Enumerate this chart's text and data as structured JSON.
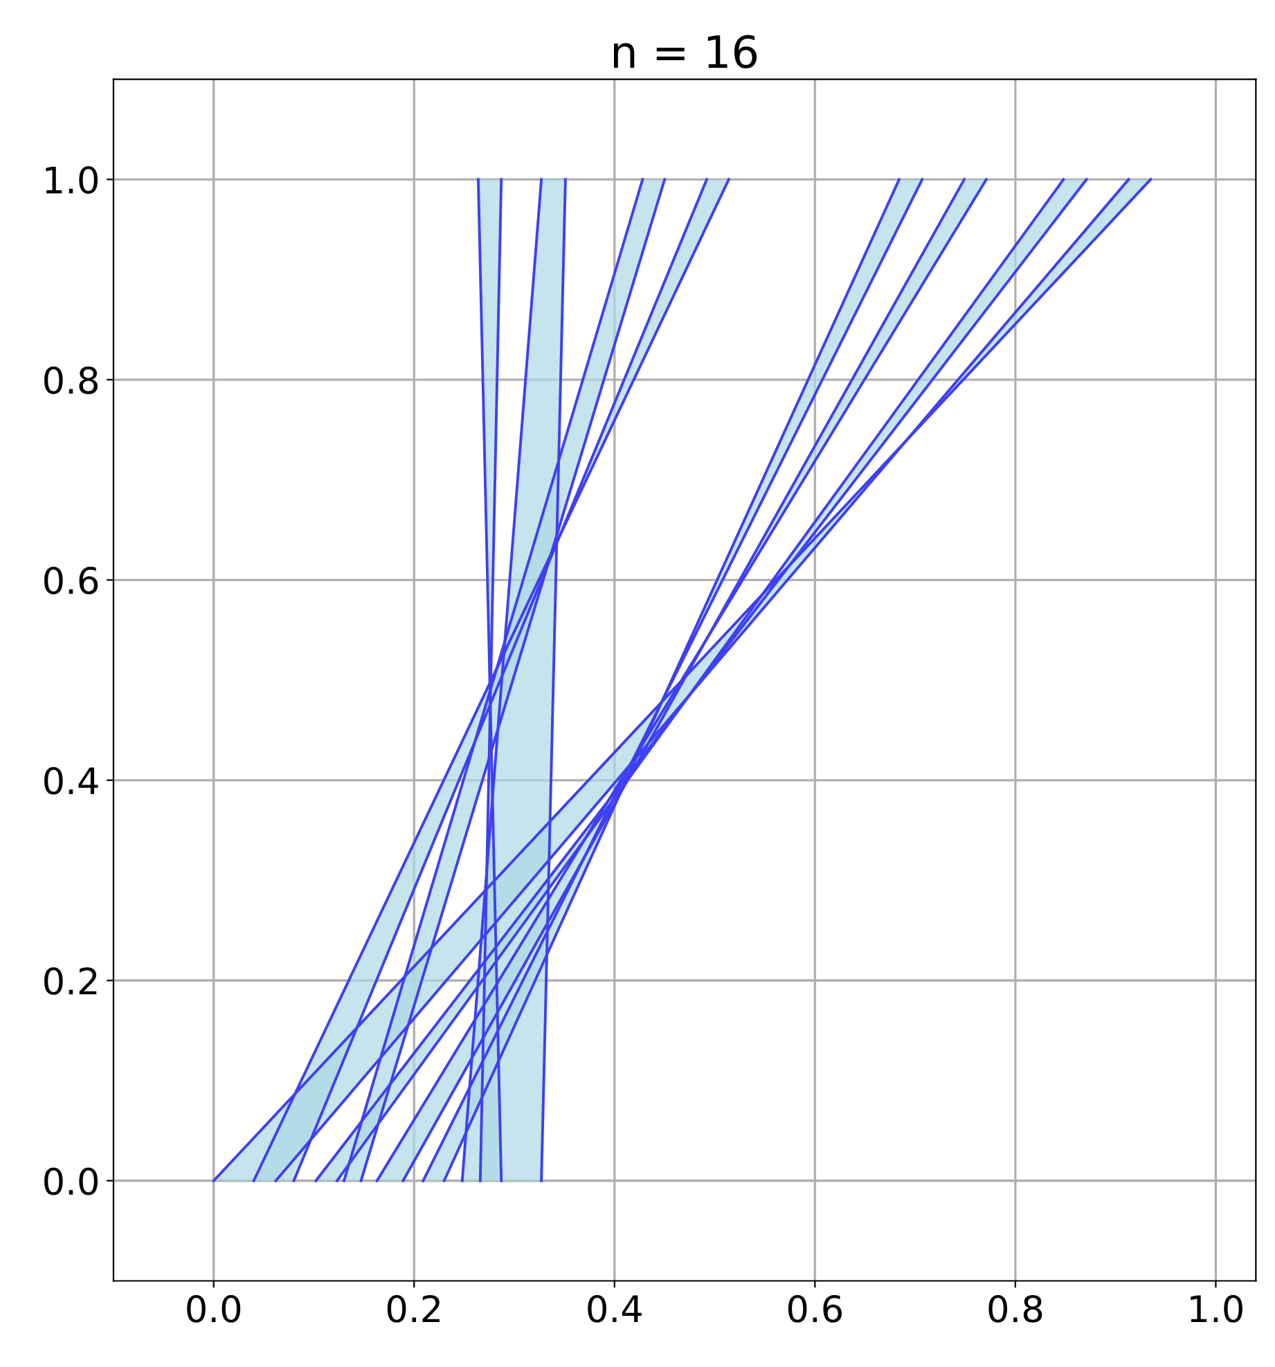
{
  "chart_data": {
    "type": "line",
    "title": "n = 16",
    "series": [
      {
        "color": "#3f3ff5",
        "x": [
          0.287,
          0.264
        ],
        "values": [
          0,
          1
        ]
      },
      {
        "color": "#3f3ff5",
        "x": [
          0.266,
          0.287
        ],
        "values": [
          0,
          1
        ]
      },
      {
        "color": "#3f3ff5",
        "x": [
          0.248,
          0.327
        ],
        "values": [
          0,
          1
        ]
      },
      {
        "color": "#3f3ff5",
        "x": [
          0.327,
          0.351
        ],
        "values": [
          0,
          1
        ]
      },
      {
        "color": "#3f3ff5",
        "x": [
          0.13,
          0.428
        ],
        "values": [
          0,
          1
        ]
      },
      {
        "color": "#3f3ff5",
        "x": [
          0.147,
          0.45
        ],
        "values": [
          0,
          1
        ]
      },
      {
        "color": "#3f3ff5",
        "x": [
          0.08,
          0.492
        ],
        "values": [
          0,
          1
        ]
      },
      {
        "color": "#3f3ff5",
        "x": [
          0.04,
          0.514
        ],
        "values": [
          0,
          1
        ]
      },
      {
        "color": "#3f3ff5",
        "x": [
          0.23,
          0.684
        ],
        "values": [
          0,
          1
        ]
      },
      {
        "color": "#3f3ff5",
        "x": [
          0.209,
          0.707
        ],
        "values": [
          0,
          1
        ]
      },
      {
        "color": "#3f3ff5",
        "x": [
          0.189,
          0.749
        ],
        "values": [
          0,
          1
        ]
      },
      {
        "color": "#3f3ff5",
        "x": [
          0.163,
          0.771
        ],
        "values": [
          0,
          1
        ]
      },
      {
        "color": "#3f3ff5",
        "x": [
          0.123,
          0.848
        ],
        "values": [
          0,
          1
        ]
      },
      {
        "color": "#3f3ff5",
        "x": [
          0.102,
          0.871
        ],
        "values": [
          0,
          1
        ]
      },
      {
        "color": "#3f3ff5",
        "x": [
          0.062,
          0.913
        ],
        "values": [
          0,
          1
        ]
      },
      {
        "color": "#3f3ff5",
        "x": [
          0.0,
          0.935
        ],
        "values": [
          0,
          1
        ]
      }
    ],
    "xlim": [
      -0.1,
      1.04
    ],
    "ylim": [
      -0.1,
      1.1
    ],
    "xticks": [
      {
        "value": 0,
        "label": "0.0"
      },
      0.2,
      0.4,
      0.6,
      0.8,
      {
        "value": 1,
        "label": "1.0"
      }
    ],
    "yticks": [
      {
        "value": 0,
        "label": "0.0"
      },
      0.2,
      0.4,
      0.6,
      0.8,
      {
        "value": 1,
        "label": "1.0"
      }
    ],
    "grid": true,
    "marker": "none",
    "line_style": "solid"
  }
}
